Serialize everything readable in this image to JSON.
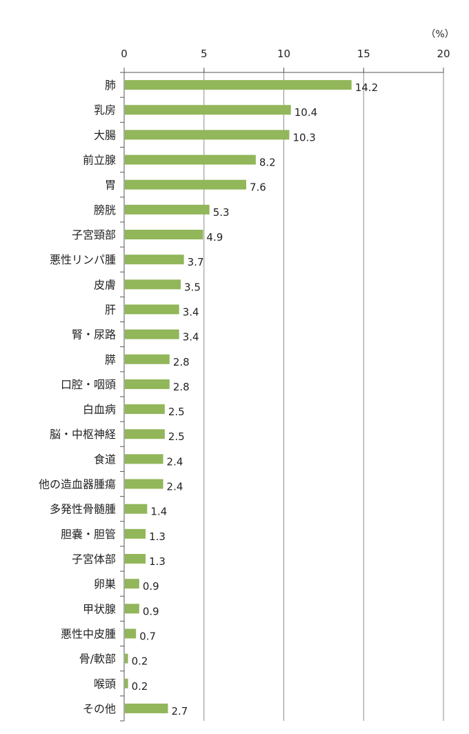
{
  "chart_data": {
    "type": "bar",
    "orientation": "horizontal",
    "unit_label": "（%）",
    "xlim": [
      0,
      20
    ],
    "x_ticks": [
      "0",
      "5",
      "10",
      "15",
      "20"
    ],
    "x_tick_values": [
      0,
      5,
      10,
      15,
      20
    ],
    "grid": "vertical",
    "bar_color": "#92b65a",
    "categories": [
      "肺",
      "乳房",
      "大腸",
      "前立腺",
      "胃",
      "膀胱",
      "子宮頸部",
      "悪性リンパ腫",
      "皮膚",
      "肝",
      "腎・尿路",
      "膵",
      "口腔・咽頭",
      "白血病",
      "脳・中枢神経",
      "食道",
      "他の造血器腫瘍",
      "多発性骨髄腫",
      "胆嚢・胆管",
      "子宮体部",
      "卵巣",
      "甲状腺",
      "悪性中皮腫",
      "骨/軟部",
      "喉頭",
      "その他"
    ],
    "values": [
      14.2,
      10.4,
      10.3,
      8.2,
      7.6,
      5.3,
      4.9,
      3.7,
      3.5,
      3.4,
      3.4,
      2.8,
      2.8,
      2.5,
      2.5,
      2.4,
      2.4,
      1.4,
      1.3,
      1.3,
      0.9,
      0.9,
      0.7,
      0.2,
      0.2,
      2.7
    ],
    "value_labels": [
      "14.2",
      "10.4",
      "10.3",
      "8.2",
      "7.6",
      "5.3",
      "4.9",
      "3.7",
      "3.5",
      "3.4",
      "3.4",
      "2.8",
      "2.8",
      "2.5",
      "2.5",
      "2.4",
      "2.4",
      "1.4",
      "1.3",
      "1.3",
      "0.9",
      "0.9",
      "0.7",
      "0.2",
      "0.2",
      "2.7"
    ]
  }
}
